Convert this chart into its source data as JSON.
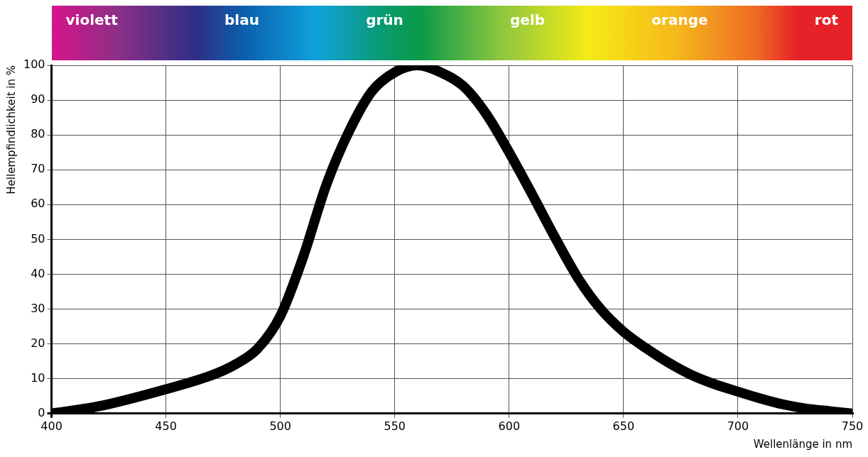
{
  "chart_data": {
    "type": "line",
    "xlabel": "Wellenlänge in nm",
    "ylabel": "Hellempfindlichkeit in %",
    "annotations": [
      "violett",
      "blau",
      "grün",
      "gelb",
      "orange",
      "rot"
    ],
    "x": [
      400,
      420,
      450,
      470,
      480,
      490,
      500,
      510,
      520,
      530,
      540,
      550,
      560,
      570,
      580,
      590,
      600,
      610,
      620,
      630,
      640,
      650,
      660,
      670,
      680,
      690,
      700,
      710,
      720,
      730,
      740,
      750
    ],
    "series": [
      {
        "color": "#000000",
        "values": [
          0,
          2,
          7,
          11,
          14,
          18.6,
          28,
          45,
          65.5,
          81,
          92.5,
          98,
          100,
          98,
          94,
          86,
          75,
          63,
          50.6,
          39,
          30,
          23.5,
          18.7,
          14.5,
          11,
          8.4,
          6.3,
          4.3,
          2.6,
          1.4,
          0.7,
          0
        ]
      }
    ],
    "xlim": [
      400,
      750
    ],
    "xticks": [
      400,
      450,
      500,
      550,
      600,
      650,
      700,
      750
    ],
    "ylim": [
      0,
      100
    ],
    "yticks": [
      0,
      10,
      20,
      30,
      40,
      50,
      60,
      70,
      80,
      90,
      100
    ],
    "grid": true,
    "legend": false,
    "marker": "none",
    "line_style": "solid"
  }
}
